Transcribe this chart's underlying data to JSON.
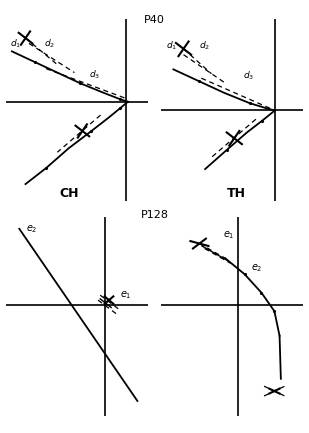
{
  "title_p40": "P40",
  "title_p128": "P128",
  "label_ch": "CH",
  "label_th": "TH",
  "bg_color": "#ffffff"
}
